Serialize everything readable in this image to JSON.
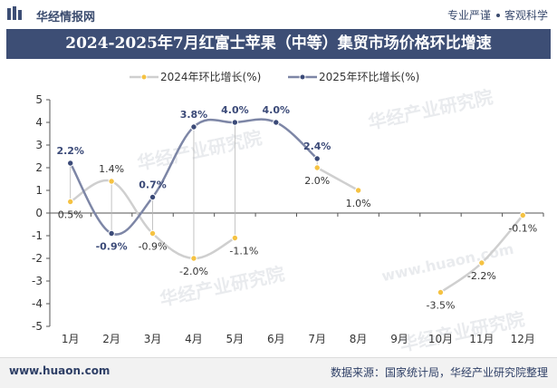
{
  "header": {
    "brand": "华经情报网",
    "tagline_left": "专业严谨",
    "tagline_right": "客观科学"
  },
  "watermarks": [
    "华经产业研究院",
    "华经产业研究院",
    "华经产业研究院",
    "华经产业研究院",
    "www.huaon.com"
  ],
  "footer": {
    "url": "www.huaon.com",
    "source": "数据来源：国家统计局，华经产业研究院整理"
  },
  "colors": {
    "series_2024_line": "#cfcfcf",
    "series_2024_marker": "#f5c242",
    "series_2025_line": "#7d86a6",
    "series_2025_marker": "#3b4a78",
    "title_bar": "#3d4e75"
  },
  "chart_data": {
    "type": "line",
    "title": "2024-2025年7月红富士苹果（中等）集贸市场价格环比增速",
    "categories": [
      "1月",
      "2月",
      "3月",
      "4月",
      "5月",
      "6月",
      "7月",
      "8月",
      "9月",
      "10月",
      "11月",
      "12月"
    ],
    "ylim": [
      -5,
      5
    ],
    "yticks": [
      "5",
      "4",
      "3",
      "2",
      "1",
      "0",
      "-1",
      "-2",
      "-3",
      "-4",
      "-5"
    ],
    "grid": false,
    "legend": "top-left",
    "series": [
      {
        "name": "2024年环比增长(%)",
        "values": [
          0.5,
          1.4,
          -0.9,
          -2.0,
          -1.1,
          null,
          2.0,
          1.0,
          null,
          -3.5,
          -2.2,
          -0.1
        ],
        "labels": [
          "0.5%",
          "1.4%",
          "-0.9%",
          "-2.0%",
          "-1.1%",
          "",
          "2.0%",
          "1.0%",
          "",
          "-3.5%",
          "-2.2%",
          "-0.1%"
        ]
      },
      {
        "name": "2025年环比增长(%)",
        "values": [
          2.2,
          -0.9,
          0.7,
          3.8,
          4.0,
          4.0,
          2.4,
          null,
          null,
          null,
          null,
          null
        ],
        "labels": [
          "2.2%",
          "-0.9%",
          "0.7%",
          "3.8%",
          "4.0%",
          "4.0%",
          "2.4%",
          "",
          "",
          "",
          "",
          ""
        ]
      }
    ]
  }
}
